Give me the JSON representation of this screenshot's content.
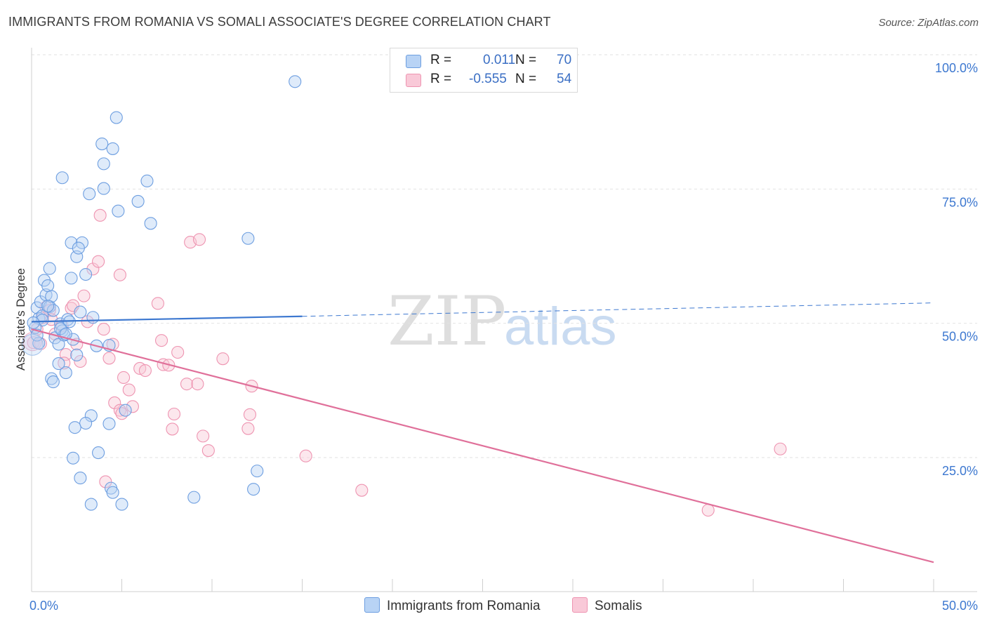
{
  "title": "IMMIGRANTS FROM ROMANIA VS SOMALI ASSOCIATE'S DEGREE CORRELATION CHART",
  "source": "Source: ZipAtlas.com",
  "watermark": {
    "zip": "ZIP",
    "atlas": "atlas"
  },
  "legend": {
    "r_label": "R =",
    "n_label": "N =",
    "rows": [
      {
        "r": "0.011",
        "n": "70",
        "fill": "#b8d3f5",
        "stroke": "#6d9ee0"
      },
      {
        "r": "-0.555",
        "n": "54",
        "fill": "#f9c9d8",
        "stroke": "#ee94b1"
      }
    ]
  },
  "bottom_legend": [
    {
      "label": "Immigrants from Romania",
      "fill": "#b8d3f5",
      "stroke": "#6d9ee0"
    },
    {
      "label": "Somalis",
      "fill": "#f9c9d8",
      "stroke": "#ee94b1"
    }
  ],
  "chart_data": {
    "type": "scatter",
    "title": "IMMIGRANTS FROM ROMANIA VS SOMALI ASSOCIATE'S DEGREE CORRELATION CHART",
    "xlabel": "",
    "ylabel": "Associate's Degree",
    "xlim": [
      0,
      50
    ],
    "ylim": [
      0,
      105
    ],
    "x_tick_labels": [
      "0.0%",
      "50.0%"
    ],
    "y_ticks": [
      25,
      50,
      75,
      100
    ],
    "y_tick_labels": [
      "25.0%",
      "50.0%",
      "75.0%",
      "100.0%"
    ],
    "grid": "horizontal dashed",
    "colors": {
      "romania": "#3d78d0",
      "somali": "#e0709a",
      "tick_label": "#3d78d0"
    },
    "series": [
      {
        "name": "Immigrants from Romania",
        "r": 0.011,
        "n": 70,
        "trend": {
          "x0": 0,
          "y0": 50.3,
          "x1": 15,
          "y1": 51.3,
          "dash_to_x": 50,
          "dash_to_y": 53.8
        },
        "points": [
          [
            0.3,
            52.9
          ],
          [
            0.5,
            54
          ],
          [
            0.4,
            50.9
          ],
          [
            0.6,
            51.4
          ],
          [
            0.6,
            50.6
          ],
          [
            0.7,
            58
          ],
          [
            0.8,
            55.3
          ],
          [
            0.9,
            57
          ],
          [
            1.0,
            60.2
          ],
          [
            1.0,
            53.1
          ],
          [
            1.1,
            55
          ],
          [
            1.2,
            52.4
          ],
          [
            1.3,
            47.3
          ],
          [
            1.5,
            46.1
          ],
          [
            1.6,
            49.9
          ],
          [
            1.7,
            48.6
          ],
          [
            1.8,
            47.8
          ],
          [
            2.0,
            50.7
          ],
          [
            2.1,
            50.3
          ],
          [
            2.3,
            47
          ],
          [
            0.2,
            49.2
          ],
          [
            0.9,
            53.2
          ],
          [
            1.5,
            42.5
          ],
          [
            1.9,
            40.8
          ],
          [
            1.1,
            39.7
          ],
          [
            1.2,
            39.1
          ],
          [
            1.7,
            77.1
          ],
          [
            2.2,
            58.4
          ],
          [
            2.2,
            65
          ],
          [
            2.8,
            65
          ],
          [
            2.5,
            62.4
          ],
          [
            2.6,
            64
          ],
          [
            3.0,
            59.1
          ],
          [
            2.5,
            44.1
          ],
          [
            3.2,
            74.1
          ],
          [
            3.6,
            45.8
          ],
          [
            4.3,
            45.9
          ],
          [
            3.9,
            83.4
          ],
          [
            4.5,
            82.5
          ],
          [
            4.7,
            88.3
          ],
          [
            4.0,
            79.7
          ],
          [
            4.0,
            75.1
          ],
          [
            4.8,
            70.9
          ],
          [
            5.9,
            72.7
          ],
          [
            6.4,
            76.5
          ],
          [
            6.6,
            68.6
          ],
          [
            3.3,
            32.8
          ],
          [
            3.0,
            31.4
          ],
          [
            2.4,
            30.6
          ],
          [
            4.3,
            31.3
          ],
          [
            5.2,
            33.8
          ],
          [
            2.3,
            24.9
          ],
          [
            2.7,
            21.2
          ],
          [
            3.7,
            25.9
          ],
          [
            3.3,
            16.3
          ],
          [
            4.4,
            19.3
          ],
          [
            4.5,
            18.5
          ],
          [
            5.0,
            16.3
          ],
          [
            9.0,
            17.6
          ],
          [
            12.0,
            65.8
          ],
          [
            14.6,
            95
          ],
          [
            12.5,
            22.5
          ],
          [
            12.3,
            19.1
          ],
          [
            1.6,
            49
          ],
          [
            0.4,
            46.3
          ],
          [
            0.3,
            47.8
          ],
          [
            1.9,
            48
          ],
          [
            2.7,
            52.1
          ],
          [
            3.4,
            51.1
          ],
          [
            0.1,
            50.1
          ]
        ]
      },
      {
        "name": "Somalis",
        "r": -0.555,
        "n": 54,
        "trend": {
          "x0": 0,
          "y0": 48.9,
          "x1": 50,
          "y1": 5.5
        },
        "points": [
          [
            0.1,
            46.4
          ],
          [
            0.3,
            48.9
          ],
          [
            0.5,
            46.2
          ],
          [
            0.6,
            51
          ],
          [
            0.8,
            53
          ],
          [
            1.0,
            52.4
          ],
          [
            1.1,
            50.7
          ],
          [
            1.3,
            48
          ],
          [
            1.7,
            49.5
          ],
          [
            1.9,
            44.2
          ],
          [
            1.8,
            42.6
          ],
          [
            2.2,
            52.8
          ],
          [
            2.3,
            53.3
          ],
          [
            2.5,
            46.1
          ],
          [
            2.7,
            42.9
          ],
          [
            2.9,
            55.1
          ],
          [
            3.1,
            50.3
          ],
          [
            3.4,
            60.1
          ],
          [
            3.7,
            61.5
          ],
          [
            4.0,
            48.9
          ],
          [
            4.3,
            43.5
          ],
          [
            4.5,
            46.1
          ],
          [
            3.8,
            70.1
          ],
          [
            4.9,
            59
          ],
          [
            5.1,
            39.9
          ],
          [
            5.4,
            37.6
          ],
          [
            4.6,
            35.2
          ],
          [
            4.9,
            33.8
          ],
          [
            5.6,
            34.5
          ],
          [
            5.0,
            33.2
          ],
          [
            4.1,
            20.5
          ],
          [
            6.0,
            41.6
          ],
          [
            6.3,
            41.2
          ],
          [
            7.0,
            53.7
          ],
          [
            7.2,
            46.8
          ],
          [
            7.3,
            42.3
          ],
          [
            7.6,
            42.2
          ],
          [
            8.1,
            44.6
          ],
          [
            7.9,
            33.1
          ],
          [
            7.8,
            30.3
          ],
          [
            8.6,
            38.7
          ],
          [
            8.8,
            65.1
          ],
          [
            9.3,
            65.6
          ],
          [
            9.2,
            38.7
          ],
          [
            9.5,
            29
          ],
          [
            9.8,
            26.3
          ],
          [
            10.6,
            43.4
          ],
          [
            12.2,
            38.3
          ],
          [
            12.1,
            33
          ],
          [
            12.0,
            30.4
          ],
          [
            15.2,
            25.3
          ],
          [
            18.3,
            18.9
          ],
          [
            37.5,
            15.2
          ],
          [
            41.5,
            26.6
          ]
        ]
      }
    ]
  }
}
